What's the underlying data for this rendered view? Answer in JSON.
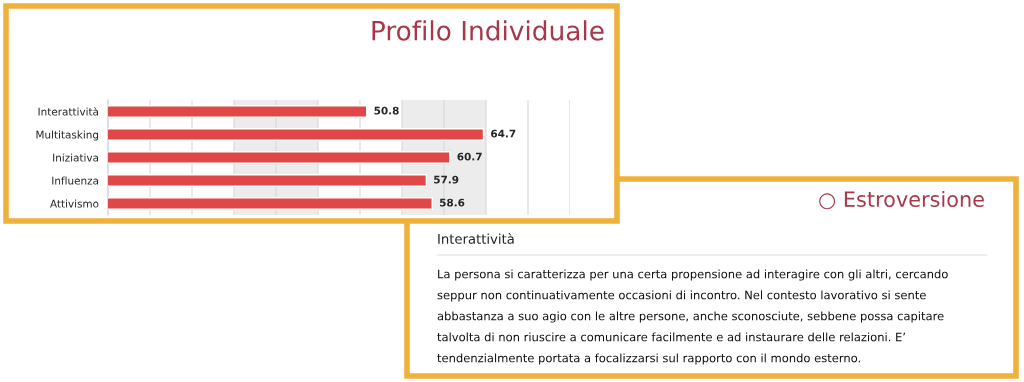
{
  "chart_data": [
    {
      "type": "bar",
      "orientation": "horizontal",
      "title": "Profilo Individuale",
      "categories": [
        "Interattività",
        "Multitasking",
        "Iniziativa",
        "Influenza",
        "Attivismo"
      ],
      "series": [
        {
          "color": "#e04848",
          "values": [
            50.8,
            64.7,
            60.7,
            57.9,
            58.6
          ]
        }
      ],
      "data_labels": true,
      "xlim": [
        20,
        75
      ],
      "xticks": [
        {
          "value": 25,
          "label": null
        },
        {
          "value": 30,
          "label": null
        },
        {
          "value": 35,
          "label": null
        },
        {
          "value": 40,
          "label": null
        },
        {
          "value": 45,
          "label": null
        },
        {
          "value": 50,
          "label": null
        },
        {
          "value": 55,
          "label": null
        },
        {
          "value": 60,
          "label": null
        },
        {
          "value": 65,
          "label": null
        },
        {
          "value": 70,
          "label": null
        },
        {
          "value": 75,
          "label": null
        }
      ],
      "tick_labels": "y",
      "grid": "x",
      "bands": [
        {
          "axis": "x",
          "from": 35,
          "to": 45,
          "color": "#ececec"
        },
        {
          "axis": "x",
          "from": 55,
          "to": 65,
          "color": "#ececec"
        }
      ]
    },
    {
      "type": "other",
      "title": "○ Estroversione",
      "subtitle": "Interattività",
      "annotations": [
        "La persona si caratterizza per una certa propensione ad interagire con gli altri, cercando",
        "seppur non continuativamente occasioni di incontro. Nel contesto lavorativo si sente",
        "abbastanza a suo agio con le altre persone, anche sconosciute, sebbene possa capitare",
        "talvolta di non riuscire a comunicare facilmente e ad instaurare delle relazioni. E’",
        "tendenzialmente portata a focalizzarsi sul rapporto con il mondo esterno."
      ]
    }
  ]
}
